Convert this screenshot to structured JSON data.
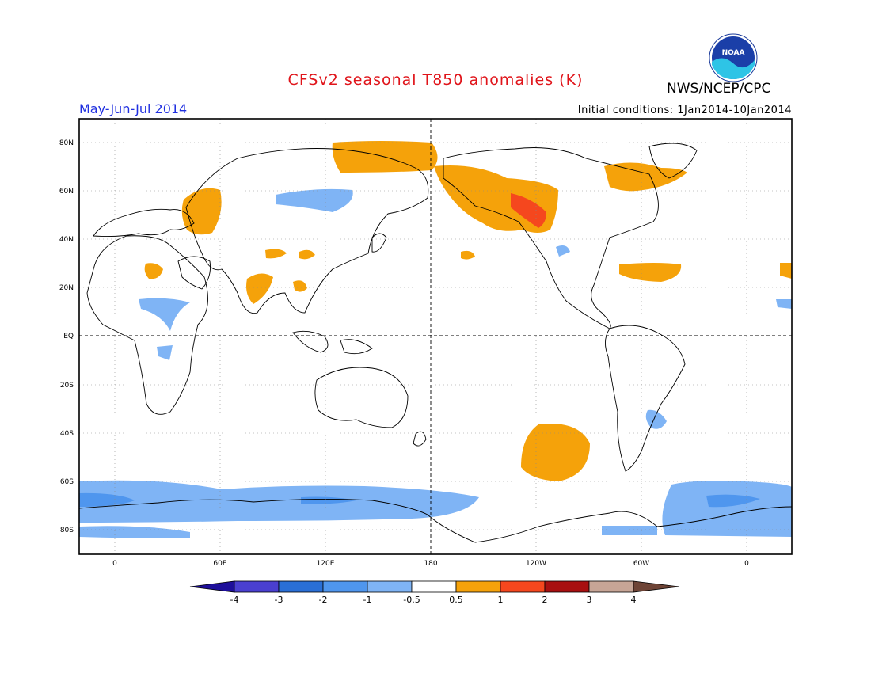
{
  "title": "CFSv2 seasonal T850 anomalies (K)",
  "org": "NWS/NCEP/CPC",
  "period": "May-Jun-Jul 2014",
  "initial_conditions": "Initial conditions: 1Jan2014-10Jan2014",
  "logo_text": "NOAA",
  "lat_labels": [
    "80N",
    "60N",
    "40N",
    "20N",
    "EQ",
    "20S",
    "40S",
    "60S",
    "80S"
  ],
  "lon_labels": [
    "0",
    "60E",
    "120E",
    "180",
    "120W",
    "60W",
    "0"
  ],
  "colorbar": {
    "labels": [
      "-4",
      "-3",
      "-2",
      "-1",
      "-0.5",
      "0.5",
      "1",
      "2",
      "3",
      "4"
    ],
    "colors": [
      "#1e0f9a",
      "#4a3fd0",
      "#2a6fd6",
      "#4f96ee",
      "#7fb4f5",
      "#ffffff",
      "#f5a20a",
      "#f5471e",
      "#a80f10",
      "#c7a596",
      "#6e4436"
    ]
  },
  "anomaly_colors": {
    "cool_light": "#7fb4f5",
    "cool_mid": "#4f96ee",
    "warm": "#f5a20a",
    "warm_strong": "#f5471e"
  }
}
